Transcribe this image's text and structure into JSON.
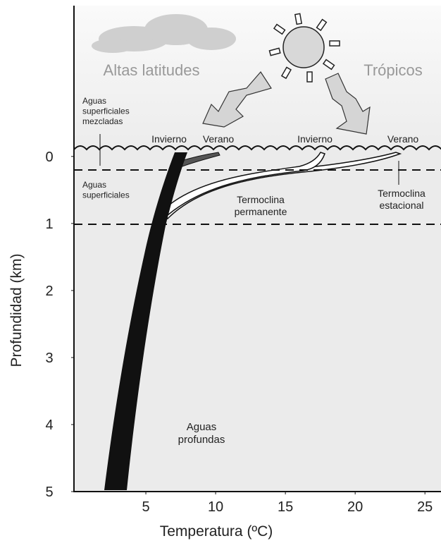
{
  "chart_data": {
    "type": "depth-profile",
    "xlabel": "Temperatura (ºC)",
    "ylabel": "Profundidad (km)",
    "xlim": [
      0,
      26
    ],
    "xticks": [
      5,
      10,
      15,
      20,
      25
    ],
    "ylim": [
      -2.25,
      5
    ],
    "yticks": [
      0,
      1,
      2,
      3,
      4,
      5
    ],
    "annotations": {
      "high_latitudes": [
        "Altas latitudes"
      ],
      "tropics": [
        "Trópicos"
      ],
      "mixed": [
        "Aguas",
        "superficiales",
        "mezcladas"
      ],
      "winter_high": [
        "Invierno"
      ],
      "summer_high": [
        "Verano"
      ],
      "winter_trop": [
        "Invierno"
      ],
      "summer_trop": [
        "Verano"
      ],
      "surface": [
        "Aguas",
        "superficiales"
      ],
      "permanent": [
        "Termoclina",
        "permanente"
      ],
      "seasonal": [
        "Termoclina",
        "estacional"
      ],
      "deep": [
        "Aguas",
        "profundas"
      ]
    }
  }
}
